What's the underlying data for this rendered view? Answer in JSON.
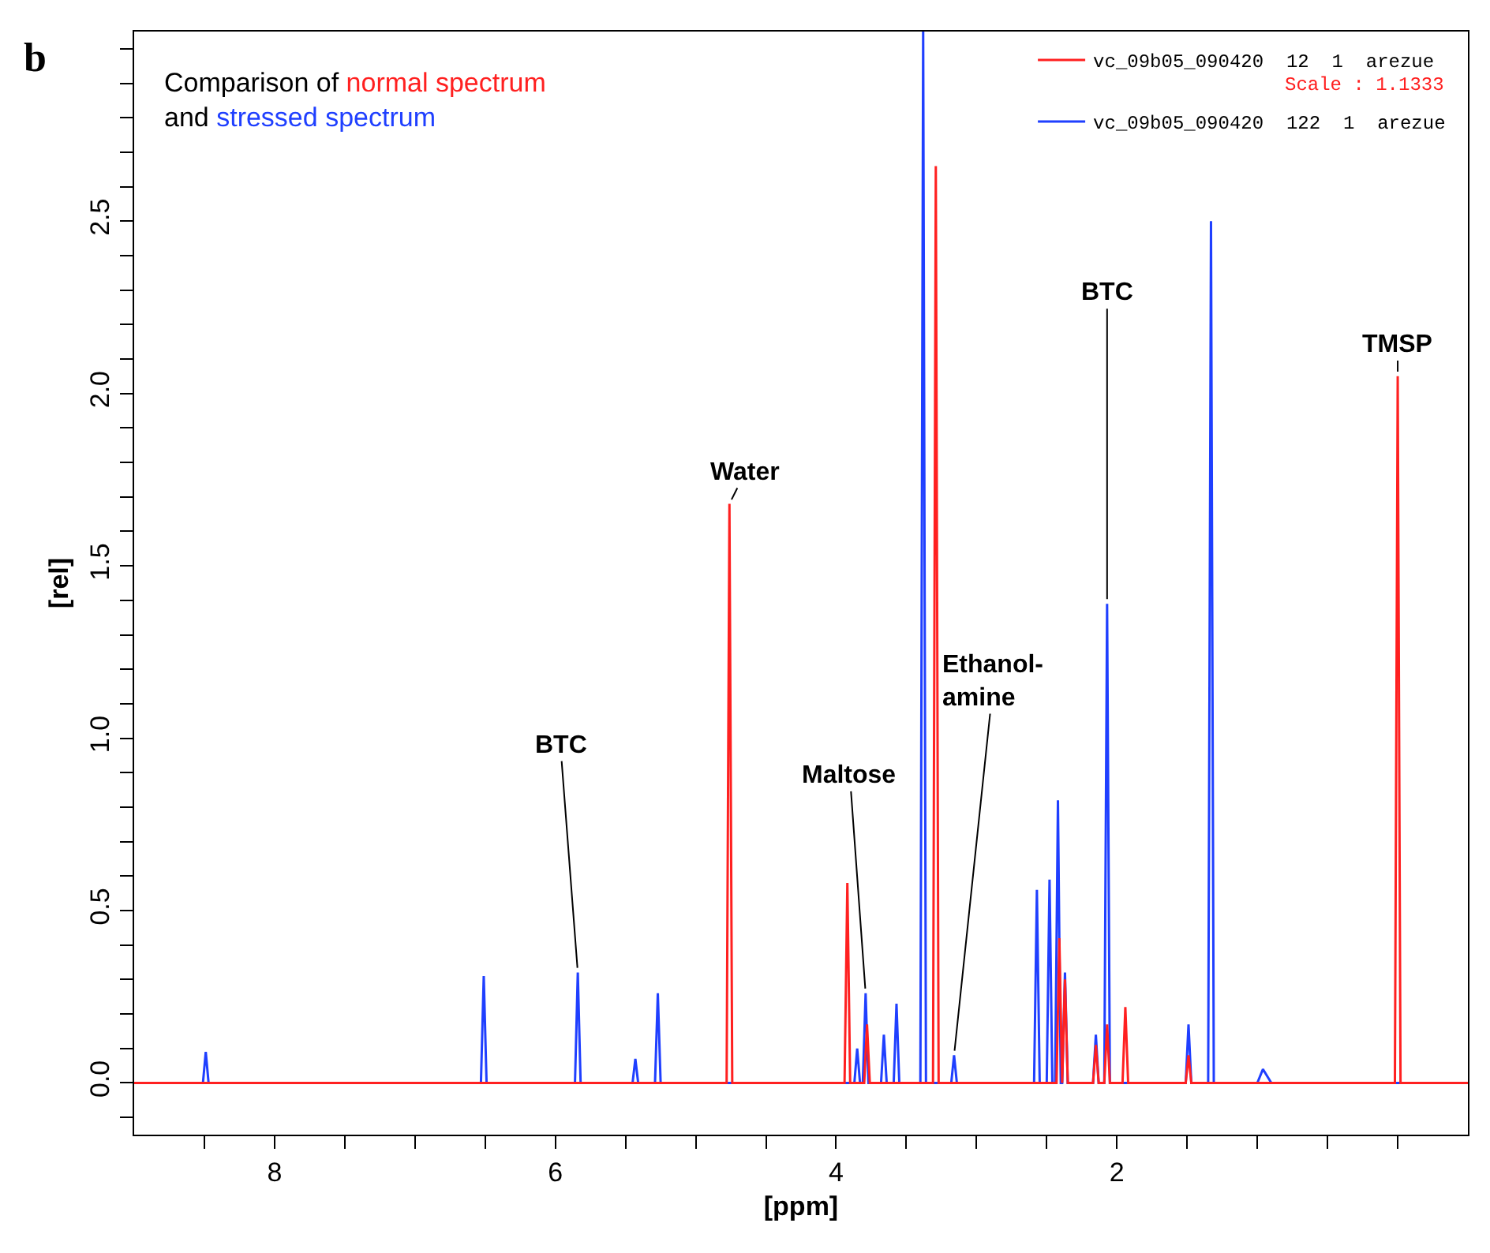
{
  "chart_data": {
    "type": "line",
    "xlabel": "[ppm]",
    "ylabel": "[rel]",
    "xlim": [
      9.0,
      -0.5
    ],
    "xticks": [
      {
        "value": 8.5,
        "label": null
      },
      8,
      {
        "value": 7.5,
        "label": null
      },
      {
        "value": 7,
        "label": null
      },
      {
        "value": 6.5,
        "label": null
      },
      6,
      {
        "value": 5.5,
        "label": null
      },
      {
        "value": 5,
        "label": null
      },
      {
        "value": 4.5,
        "label": null
      },
      4,
      {
        "value": 3.5,
        "label": null
      },
      {
        "value": 3,
        "label": null
      },
      {
        "value": 2.5,
        "label": null
      },
      2,
      {
        "value": 1.5,
        "label": null
      },
      {
        "value": 1,
        "label": null
      },
      {
        "value": 0.5,
        "label": null
      },
      {
        "value": 0,
        "label": null
      }
    ],
    "ylim": [
      -0.15,
      3.05
    ],
    "yticks": [
      {
        "value": -0.1,
        "label": null
      },
      {
        "value": 0,
        "label": "0.0"
      },
      {
        "value": 0.1,
        "label": null
      },
      {
        "value": 0.2,
        "label": null
      },
      {
        "value": 0.3,
        "label": null
      },
      {
        "value": 0.4,
        "label": null
      },
      0.5,
      {
        "value": 0.6,
        "label": null
      },
      {
        "value": 0.7,
        "label": null
      },
      {
        "value": 0.8,
        "label": null
      },
      {
        "value": 0.9,
        "label": null
      },
      {
        "value": 1.0,
        "label": "1.0"
      },
      {
        "value": 1.1,
        "label": null
      },
      {
        "value": 1.2,
        "label": null
      },
      {
        "value": 1.3,
        "label": null
      },
      {
        "value": 1.4,
        "label": null
      },
      1.5,
      {
        "value": 1.6,
        "label": null
      },
      {
        "value": 1.7,
        "label": null
      },
      {
        "value": 1.8,
        "label": null
      },
      {
        "value": 1.9,
        "label": null
      },
      {
        "value": 2.0,
        "label": "2.0"
      },
      {
        "value": 2.1,
        "label": null
      },
      {
        "value": 2.2,
        "label": null
      },
      {
        "value": 2.3,
        "label": null
      },
      {
        "value": 2.4,
        "label": null
      },
      2.5,
      {
        "value": 2.6,
        "label": null
      },
      {
        "value": 2.7,
        "label": null
      },
      {
        "value": 2.8,
        "label": null
      },
      {
        "value": 2.9,
        "label": null
      },
      {
        "value": 3.0,
        "label": null
      }
    ],
    "legend": "top right",
    "marker": "none",
    "line_style": "solid",
    "series": [
      {
        "name": "vc_09b05_090420  12  1  arezue",
        "color": "#ff2020",
        "x": [
          9.0,
          4.78,
          4.76,
          4.74,
          3.94,
          3.92,
          3.9,
          3.8,
          3.78,
          3.76,
          3.31,
          3.29,
          3.27,
          2.43,
          2.41,
          2.39,
          2.37,
          2.35,
          2.17,
          2.15,
          2.13,
          2.09,
          2.07,
          2.05,
          1.96,
          1.94,
          1.92,
          1.51,
          1.49,
          1.47,
          0.02,
          0.0,
          -0.02,
          -0.5
        ],
        "values": [
          0,
          0,
          1.68,
          0,
          0,
          0.58,
          0,
          0,
          0.17,
          0,
          0,
          2.66,
          0,
          0,
          0.42,
          0,
          0.3,
          0,
          0,
          0.11,
          0,
          0,
          0.17,
          0,
          0,
          0.22,
          0,
          0,
          0.08,
          0,
          0,
          2.05,
          0,
          0
        ]
      },
      {
        "name": "vc_09b05_090420  122  1  arezue",
        "color": "#1f3fff",
        "x": [
          9.0,
          8.51,
          8.49,
          8.47,
          6.53,
          6.51,
          6.49,
          5.86,
          5.84,
          5.82,
          5.45,
          5.43,
          5.41,
          5.29,
          5.27,
          5.25,
          3.87,
          3.85,
          3.83,
          3.81,
          3.79,
          3.77,
          3.68,
          3.66,
          3.64,
          3.59,
          3.57,
          3.55,
          3.4,
          3.38,
          3.36,
          3.18,
          3.16,
          3.14,
          2.59,
          2.57,
          2.55,
          2.5,
          2.48,
          2.46,
          2.44,
          2.42,
          2.4,
          2.39,
          2.37,
          2.35,
          2.17,
          2.15,
          2.13,
          2.09,
          2.07,
          2.05,
          1.51,
          1.49,
          1.47,
          1.35,
          1.33,
          1.31,
          1.0,
          0.96,
          0.9,
          -0.5
        ],
        "values": [
          0,
          0,
          0.09,
          0,
          0,
          0.31,
          0,
          0,
          0.32,
          0,
          0,
          0.07,
          0,
          0,
          0.26,
          0,
          0,
          0.1,
          0,
          0,
          0.26,
          0,
          0,
          0.14,
          0,
          0,
          0.23,
          0,
          0,
          3.05,
          0,
          0,
          0.08,
          0,
          0,
          0.56,
          0,
          0,
          0.59,
          0,
          0,
          0.82,
          0,
          0,
          0.32,
          0,
          0,
          0.14,
          0,
          0,
          1.39,
          0,
          0,
          0.17,
          0,
          0,
          2.5,
          0,
          0,
          0.04,
          0,
          0
        ]
      }
    ],
    "annotations": [
      "Comparison of",
      "normal spectrum",
      "and",
      "stressed spectrum",
      "b",
      "Scale : 1.1333",
      {
        "text": "BTC",
        "x": 5.84,
        "y": 0.32
      },
      {
        "text": "Maltose",
        "x": 3.79,
        "y": 0.26
      },
      {
        "text": "Water",
        "x": 4.76,
        "y": 1.68
      },
      {
        "text": "Ethanol-\namine",
        "x": 3.16,
        "y": 0.08
      },
      {
        "text": "BTC",
        "x": 2.07,
        "y": 1.39
      },
      {
        "text": "TMSP",
        "x": 0.0,
        "y": 2.05
      }
    ]
  }
}
